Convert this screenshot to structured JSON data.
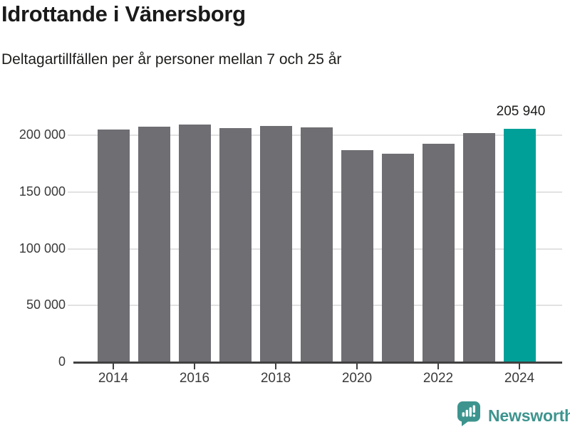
{
  "header": {
    "title": "Idrottande i Vänersborg",
    "subtitle": "Deltagartillfällen per år personer mellan 7 och 25 år"
  },
  "chart_data": {
    "type": "bar",
    "title": "Idrottande i Vänersborg",
    "subtitle": "Deltagartillfällen per år personer mellan 7 och 25 år",
    "xlabel": "",
    "ylabel": "",
    "categories": [
      "2014",
      "2015",
      "2016",
      "2017",
      "2018",
      "2019",
      "2020",
      "2021",
      "2022",
      "2023",
      "2024"
    ],
    "values": [
      205000,
      207700,
      209300,
      206000,
      207900,
      207200,
      186700,
      183600,
      192400,
      202000,
      205940
    ],
    "highlight_index": 10,
    "highlight_label": "205 940",
    "y_ticks": [
      {
        "value": 0,
        "label": "0"
      },
      {
        "value": 50000,
        "label": "50 000"
      },
      {
        "value": 100000,
        "label": "100 000"
      },
      {
        "value": 150000,
        "label": "150 000"
      },
      {
        "value": 200000,
        "label": "200 000"
      }
    ],
    "x_tick_labels": [
      "2014",
      "2016",
      "2018",
      "2020",
      "2022",
      "2024"
    ],
    "ylim": [
      0,
      220000
    ],
    "grid": true,
    "legend": "none"
  },
  "colors": {
    "bar_default": "#6e6e73",
    "bar_highlight": "#00a099",
    "gridline": "#e2e2e2",
    "axis": "#414141",
    "title_text": "#1a1a1a",
    "tick_text": "#3a3a3a",
    "brand_teal": "#3d948e"
  },
  "footer": {
    "brand": "Newsworthy",
    "logo_icon": "newsworthy-bubble-bar-chart-icon"
  }
}
